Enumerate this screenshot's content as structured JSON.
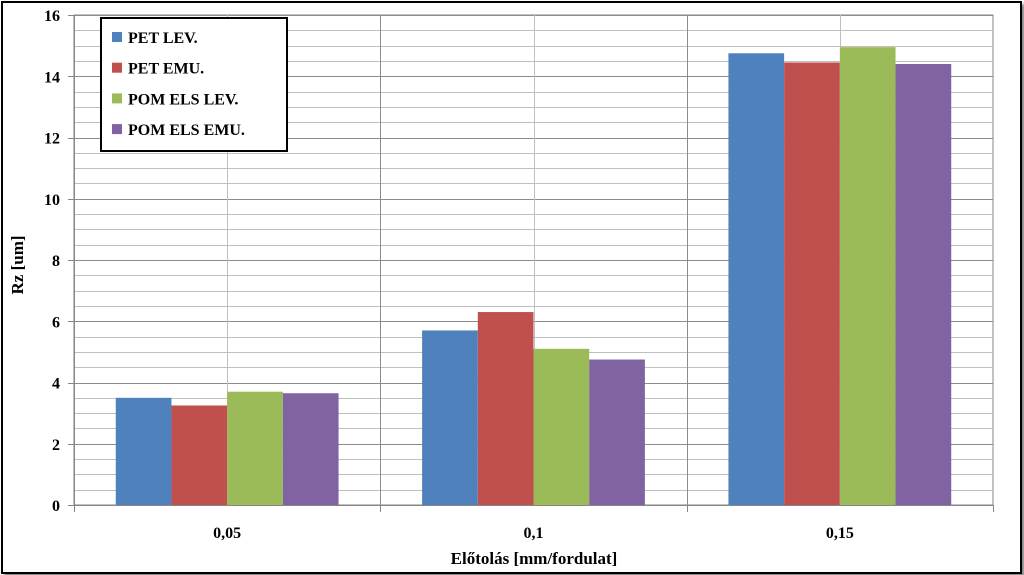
{
  "chart_data": {
    "type": "bar",
    "title": "",
    "xlabel": "Előtolás [mm/fordulat]",
    "ylabel": "Rz [um]",
    "ylim": [
      0,
      16
    ],
    "yticks": [
      0,
      2,
      4,
      6,
      8,
      10,
      12,
      14,
      16
    ],
    "ytick_labels": [
      "0",
      "2",
      "4",
      "6",
      "8",
      "10",
      "12",
      "14",
      "16"
    ],
    "grid": true,
    "legend_position": "top-left",
    "categories": [
      "0,05",
      "0,1",
      "0,15"
    ],
    "series": [
      {
        "name": "PET LEV.",
        "color": "#4F81BD",
        "values": [
          3.5,
          5.7,
          14.75
        ]
      },
      {
        "name": "PET EMU.",
        "color": "#C0504D",
        "values": [
          3.25,
          6.3,
          14.45
        ]
      },
      {
        "name": "POM ELS LEV.",
        "color": "#9BBB59",
        "values": [
          3.7,
          5.1,
          14.95
        ]
      },
      {
        "name": "POM ELS EMU.",
        "color": "#8064A2",
        "values": [
          3.65,
          4.75,
          14.4
        ]
      }
    ]
  }
}
